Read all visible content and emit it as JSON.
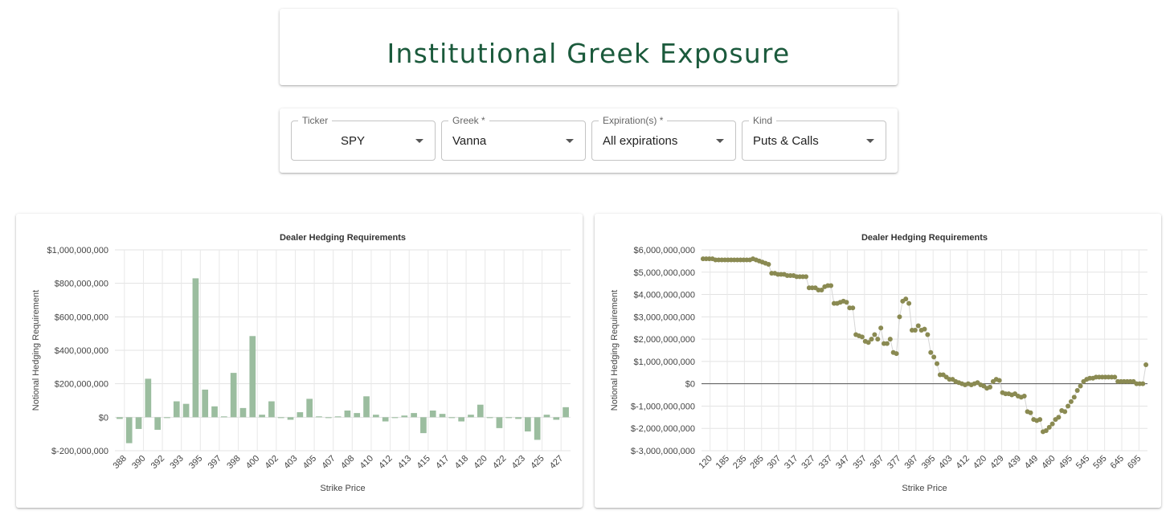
{
  "header": {
    "title": "Institutional Greek Exposure"
  },
  "filters": [
    {
      "label": "Ticker",
      "value": "SPY",
      "align": "center"
    },
    {
      "label": "Greek *",
      "value": "Vanna",
      "align": "left"
    },
    {
      "label": "Expiration(s) *",
      "value": "All expirations",
      "align": "left"
    },
    {
      "label": "Kind",
      "value": "Puts & Calls",
      "align": "left"
    }
  ],
  "colors": {
    "bar": "#9bbd9f",
    "point": "#8a8a52",
    "title": "#1b5a3c"
  },
  "chart_data": [
    {
      "type": "bar",
      "title": "Dealer Hedging Requirements",
      "xlabel": "Strike Price",
      "ylabel": "Notional Hedging Requirement",
      "ylim": [
        -200000000,
        1000000000
      ],
      "yticks": [
        "$1,000,000,000",
        "$800,000,000",
        "$600,000,000",
        "$400,000,000",
        "$200,000,000",
        "$0",
        "$-200,000,000"
      ],
      "xtick_labels": [
        "388",
        "390",
        "392",
        "393",
        "395",
        "397",
        "398",
        "400",
        "402",
        "403",
        "405",
        "407",
        "408",
        "410",
        "412",
        "413",
        "415",
        "417",
        "418",
        "420",
        "422",
        "423",
        "425",
        "427"
      ],
      "values": [
        -10000000,
        -155000000,
        -70000000,
        230000000,
        -75000000,
        -5000000,
        95000000,
        80000000,
        830000000,
        165000000,
        65000000,
        5000000,
        265000000,
        55000000,
        485000000,
        15000000,
        95000000,
        -5000000,
        -15000000,
        30000000,
        110000000,
        5000000,
        -5000000,
        5000000,
        40000000,
        25000000,
        125000000,
        15000000,
        -25000000,
        -5000000,
        10000000,
        25000000,
        -95000000,
        40000000,
        20000000,
        -5000000,
        -25000000,
        15000000,
        75000000,
        -5000000,
        -65000000,
        -5000000,
        -10000000,
        -85000000,
        -135000000,
        15000000,
        -15000000,
        60000000
      ],
      "grid": true
    },
    {
      "type": "line",
      "title": "Dealer Hedging Requirements",
      "xlabel": "Strike Price",
      "ylabel": "Notional Hedging Requirement",
      "ylim": [
        -3000000000,
        6000000000
      ],
      "yticks": [
        "$6,000,000,000",
        "$5,000,000,000",
        "$4,000,000,000",
        "$3,000,000,000",
        "$2,000,000,000",
        "$1,000,000,000",
        "$0",
        "$-1,000,000,000",
        "$-2,000,000,000",
        "$-3,000,000,000"
      ],
      "xtick_labels": [
        "120",
        "185",
        "235",
        "285",
        "307",
        "317",
        "327",
        "337",
        "347",
        "357",
        "367",
        "377",
        "387",
        "395",
        "403",
        "412",
        "420",
        "429",
        "439",
        "449",
        "460",
        "495",
        "545",
        "595",
        "645",
        "695"
      ],
      "series": [
        {
          "values": [
            5600000000.0,
            5600000000.0,
            5600000000.0,
            5600000000.0,
            5550000000.0,
            5550000000.0,
            5550000000.0,
            5550000000.0,
            5550000000.0,
            5550000000.0,
            5550000000.0,
            5550000000.0,
            5550000000.0,
            5550000000.0,
            5550000000.0,
            5550000000.0,
            5600000000.0,
            5550000000.0,
            5500000000.0,
            5450000000.0,
            5400000000.0,
            5350000000.0,
            4950000000.0,
            4950000000.0,
            4900000000.0,
            4900000000.0,
            4900000000.0,
            4850000000.0,
            4850000000.0,
            4850000000.0,
            4800000000.0,
            4800000000.0,
            4800000000.0,
            4800000000.0,
            4300000000.0,
            4300000000.0,
            4300000000.0,
            4200000000.0,
            4200000000.0,
            4350000000.0,
            4400000000.0,
            4400000000.0,
            3600000000.0,
            3600000000.0,
            3650000000.0,
            3700000000.0,
            3650000000.0,
            3400000000.0,
            3400000000.0,
            2200000000.0,
            2150000000.0,
            2100000000.0,
            1900000000.0,
            1850000000.0,
            2000000000.0,
            2200000000.0,
            2000000000.0,
            2500000000.0,
            1800000000.0,
            1800000000.0,
            2000000000.0,
            1400000000.0,
            1350000000.0,
            3000000000.0,
            3700000000.0,
            3800000000.0,
            3600000000.0,
            2400000000.0,
            2400000000.0,
            2600000000.0,
            2400000000.0,
            2450000000.0,
            2200000000.0,
            1400000000.0,
            1200000000.0,
            900000000.0,
            400000000.0,
            400000000.0,
            300000000.0,
            200000000.0,
            200000000.0,
            100000000.0,
            50000000.0,
            0.0,
            -50000000.0,
            0.0,
            -50000000.0,
            0.0,
            50000000.0,
            -50000000.0,
            -100000000.0,
            -200000000.0,
            -150000000.0,
            100000000.0,
            200000000.0,
            150000000.0,
            -400000000.0,
            -450000000.0,
            -450000000.0,
            -500000000.0,
            -450000000.0,
            -550000000.0,
            -600000000.0,
            -550000000.0,
            -1250000000.0,
            -1300000000.0,
            -1600000000.0,
            -1650000000.0,
            -1600000000.0,
            -2150000000.0,
            -2100000000.0,
            -1950000000.0,
            -1800000000.0,
            -1600000000.0,
            -1500000000.0,
            -1200000000.0,
            -1250000000.0,
            -1000000000.0,
            -800000000.0,
            -600000000.0,
            -300000000.0,
            -100000000.0,
            100000000.0,
            200000000.0,
            250000000.0,
            250000000.0,
            300000000.0,
            300000000.0,
            300000000.0,
            300000000.0,
            300000000.0,
            300000000.0,
            300000000.0,
            100000000.0,
            100000000.0,
            100000000.0,
            100000000.0,
            100000000.0,
            100000000.0,
            0.0,
            0.0,
            0.0,
            850000000.0
          ]
        }
      ],
      "grid": true
    }
  ]
}
